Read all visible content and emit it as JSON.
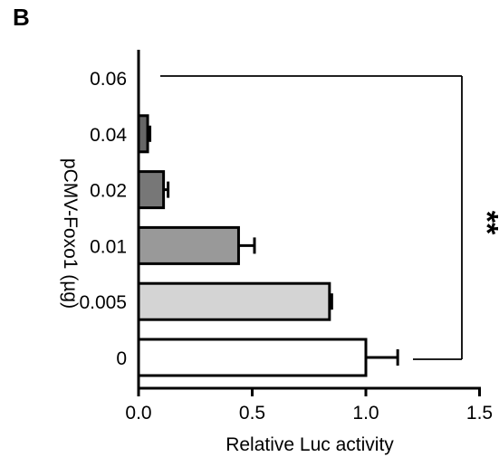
{
  "panel_label": "B",
  "chart_data": {
    "type": "bar",
    "orientation": "horizontal",
    "title": "",
    "xlabel": "Relative Luc activity",
    "ylabel": "pCMV-Foxo1 (µg)",
    "categories": [
      "0.06",
      "0.04",
      "0.02",
      "0.01",
      "0.005",
      "0"
    ],
    "values": [
      0.0,
      0.04,
      0.11,
      0.44,
      0.84,
      1.0
    ],
    "errors": [
      0.0,
      0.01,
      0.02,
      0.07,
      0.01,
      0.14
    ],
    "bar_colors": [
      "#ffffff",
      "#666666",
      "#777777",
      "#999999",
      "#d4d4d4",
      "#ffffff"
    ],
    "xlim": [
      0,
      1.5
    ],
    "xticks": [
      "0.0",
      "0.5",
      "1.0",
      "1.5"
    ],
    "xtick_values": [
      0,
      0.5,
      1.0,
      1.5
    ],
    "significance": {
      "label": "**",
      "between": [
        "0.06",
        "0"
      ]
    },
    "grid": false
  }
}
